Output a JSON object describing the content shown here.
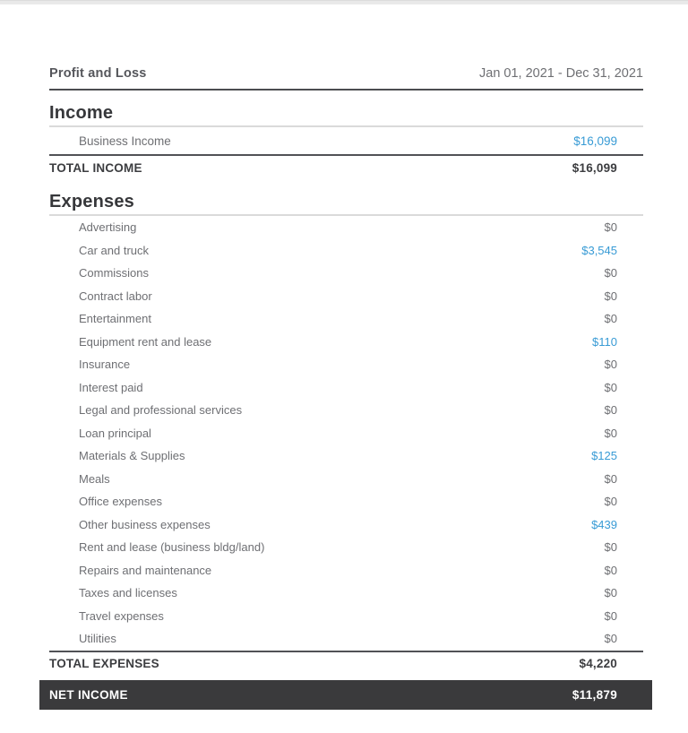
{
  "report": {
    "title": "Profit and Loss",
    "date_range": "Jan 01, 2021 - Dec 31, 2021",
    "sections": [
      {
        "heading": "Income",
        "rows": [
          {
            "label": "Business Income",
            "value": "$16,099",
            "highlight": true
          }
        ],
        "total_label": "TOTAL INCOME",
        "total_value": "$16,099"
      },
      {
        "heading": "Expenses",
        "rows": [
          {
            "label": "Advertising",
            "value": "$0",
            "highlight": false
          },
          {
            "label": "Car and truck",
            "value": "$3,545",
            "highlight": true
          },
          {
            "label": "Commissions",
            "value": "$0",
            "highlight": false
          },
          {
            "label": "Contract labor",
            "value": "$0",
            "highlight": false
          },
          {
            "label": "Entertainment",
            "value": "$0",
            "highlight": false
          },
          {
            "label": "Equipment rent and lease",
            "value": "$110",
            "highlight": true
          },
          {
            "label": "Insurance",
            "value": "$0",
            "highlight": false
          },
          {
            "label": "Interest paid",
            "value": "$0",
            "highlight": false
          },
          {
            "label": "Legal and professional services",
            "value": "$0",
            "highlight": false
          },
          {
            "label": "Loan principal",
            "value": "$0",
            "highlight": false
          },
          {
            "label": "Materials & Supplies",
            "value": "$125",
            "highlight": true
          },
          {
            "label": "Meals",
            "value": "$0",
            "highlight": false
          },
          {
            "label": "Office expenses",
            "value": "$0",
            "highlight": false
          },
          {
            "label": "Other business expenses",
            "value": "$439",
            "highlight": true
          },
          {
            "label": "Rent and lease (business bldg/land)",
            "value": "$0",
            "highlight": false
          },
          {
            "label": "Repairs and maintenance",
            "value": "$0",
            "highlight": false
          },
          {
            "label": "Taxes and licenses",
            "value": "$0",
            "highlight": false
          },
          {
            "label": "Travel expenses",
            "value": "$0",
            "highlight": false
          },
          {
            "label": "Utilities",
            "value": "$0",
            "highlight": false
          }
        ],
        "total_label": "TOTAL EXPENSES",
        "total_value": "$4,220"
      }
    ],
    "net": {
      "label": "NET INCOME",
      "value": "$11,879"
    }
  },
  "colors": {
    "link_amount": "#389bd5",
    "heading_text": "#36373a",
    "body_text": "#6e6f73",
    "dark_rule": "#4c4d50",
    "light_rule": "#dadada",
    "net_bar_background": "#3a3a3c",
    "net_bar_text": "#ffffff",
    "top_strip": "#e9e9e9"
  }
}
